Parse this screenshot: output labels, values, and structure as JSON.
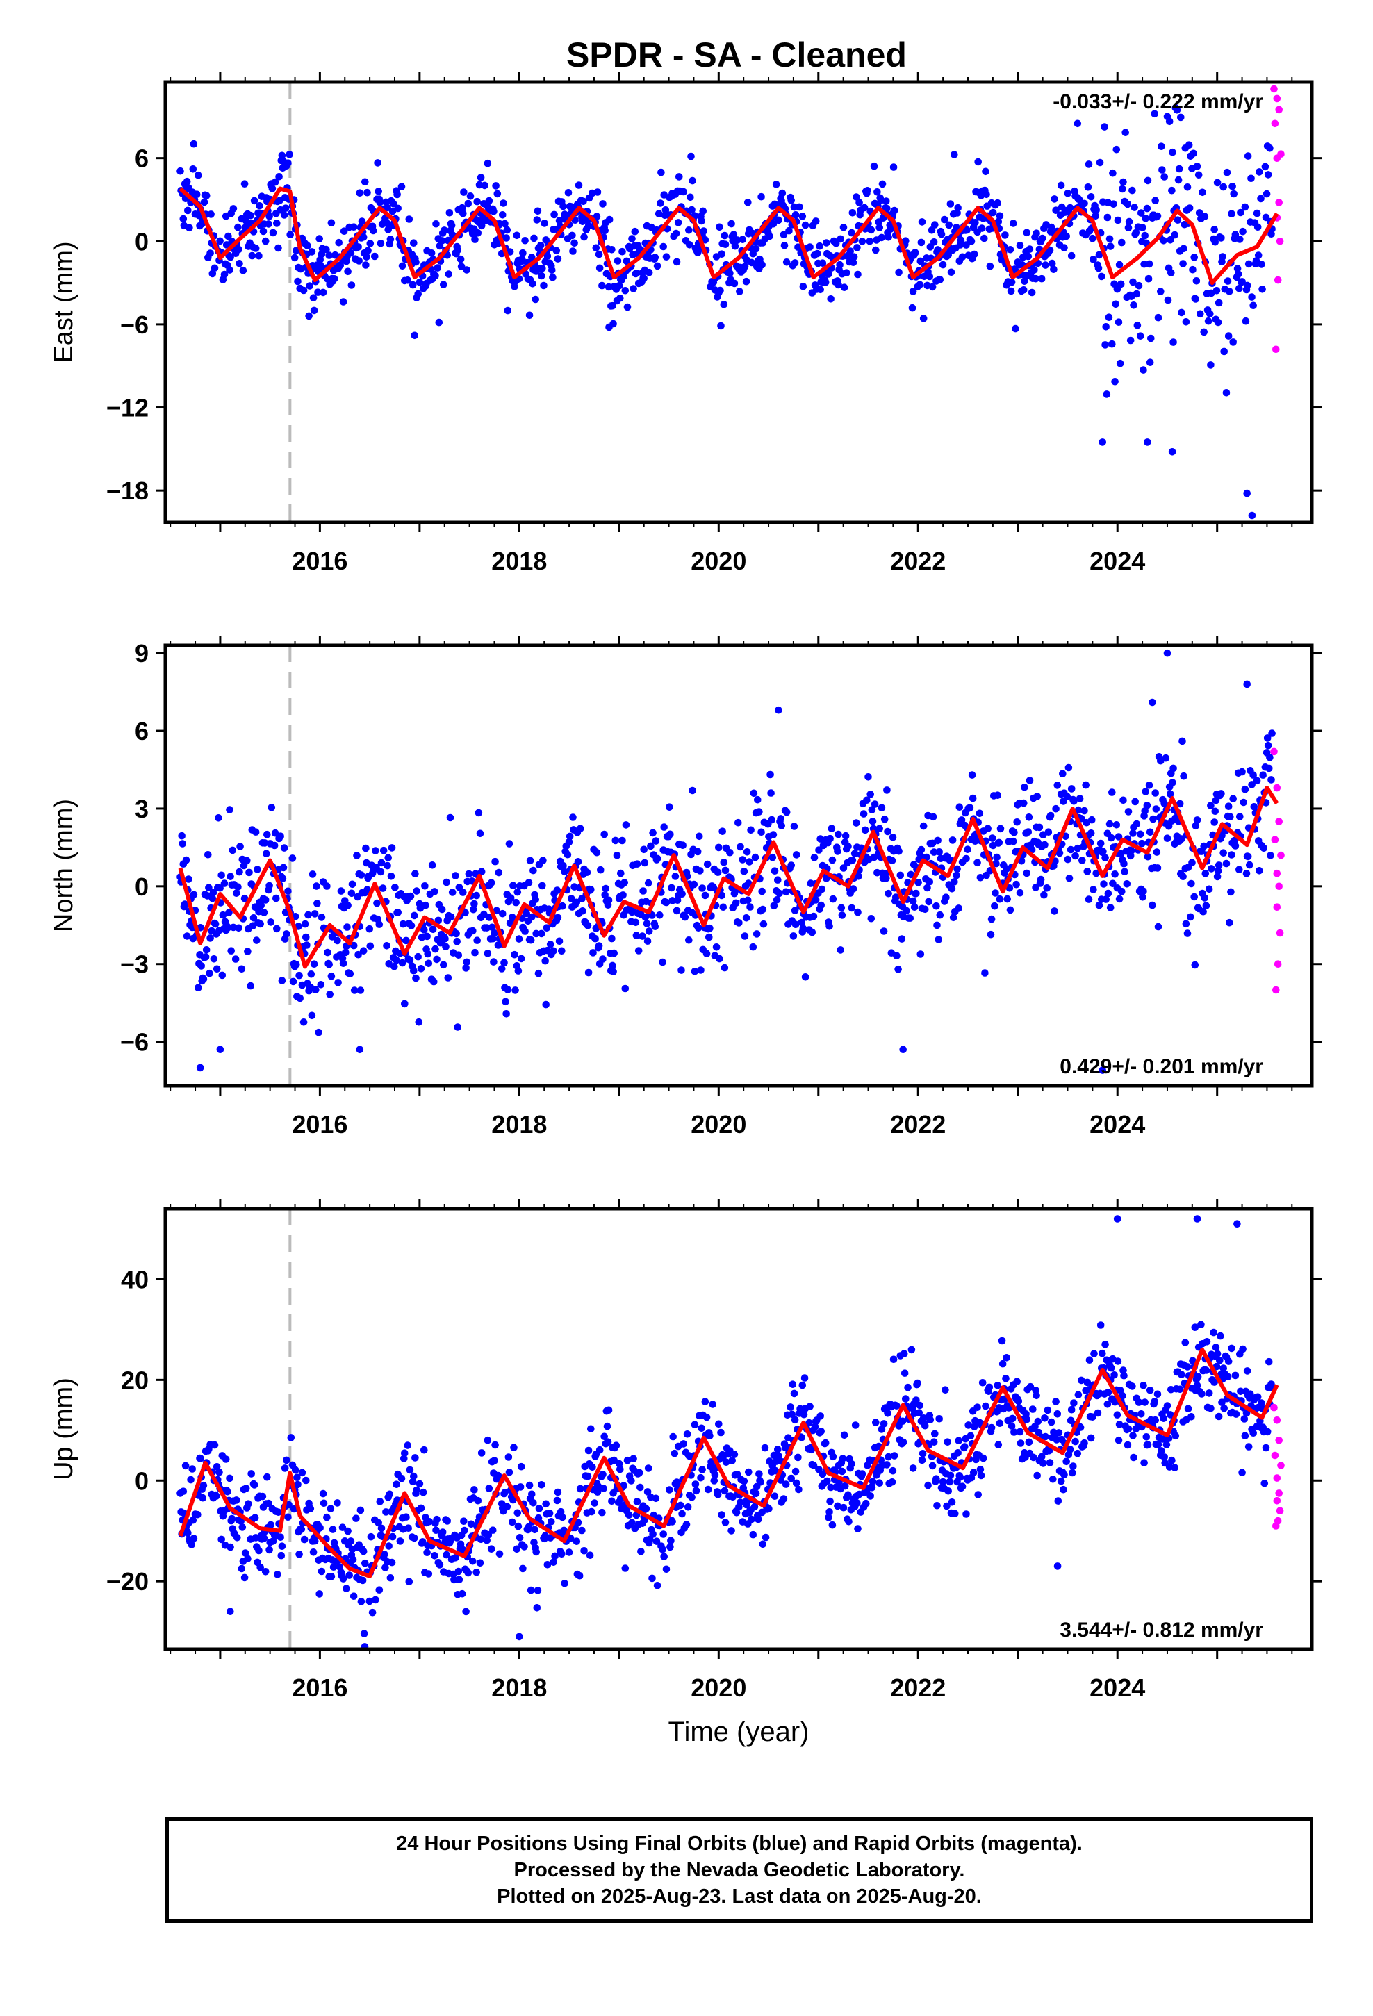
{
  "chart_data": [
    {
      "type": "scatter",
      "title": "SPDR  - SA - Cleaned",
      "ylabel": "East (mm)",
      "xlabel": "",
      "xlim": [
        2014.45,
        2025.95
      ],
      "ylim": [
        -20.3,
        11.5
      ],
      "x_ticks": [
        2016,
        2018,
        2020,
        2022,
        2024
      ],
      "y_ticks": [
        6,
        0,
        -6,
        -12,
        -18
      ],
      "y_tick_labels": [
        "6",
        "0",
        "−6",
        "−12",
        "−18"
      ],
      "rate_label": "-0.033+/- 0.222 mm/yr",
      "rate_position": "top-right",
      "grid": false,
      "equipment_change": 2015.7,
      "colors": {
        "final": "#0000ff",
        "rapid": "#ff00ff",
        "model": "#ff0000",
        "marker": "#bbbbbb"
      },
      "model": {
        "x": [
          2014.6,
          2014.8,
          2015.0,
          2015.2,
          2015.4,
          2015.6,
          2015.7,
          2015.8,
          2015.95,
          2016.2,
          2016.4,
          2016.6,
          2016.75,
          2016.95,
          2017.2,
          2017.4,
          2017.6,
          2017.75,
          2017.95,
          2018.2,
          2018.4,
          2018.6,
          2018.75,
          2018.95,
          2019.2,
          2019.4,
          2019.6,
          2019.75,
          2019.95,
          2020.2,
          2020.4,
          2020.6,
          2020.75,
          2020.95,
          2021.2,
          2021.4,
          2021.6,
          2021.75,
          2021.95,
          2022.2,
          2022.4,
          2022.6,
          2022.75,
          2022.95,
          2023.2,
          2023.4,
          2023.6,
          2023.75,
          2023.95,
          2024.2,
          2024.4,
          2024.6,
          2024.75,
          2024.95,
          2025.2,
          2025.4,
          2025.6
        ],
        "y": [
          3.8,
          2.5,
          -1.2,
          0.2,
          1.5,
          3.8,
          3.6,
          -0.5,
          -2.8,
          -1.2,
          0.6,
          2.4,
          1.5,
          -2.6,
          -1.2,
          0.6,
          2.4,
          1.5,
          -2.6,
          -1.2,
          0.6,
          2.4,
          1.5,
          -2.6,
          -1.2,
          0.6,
          2.4,
          1.5,
          -2.6,
          -1.2,
          0.6,
          2.4,
          1.5,
          -2.6,
          -1.2,
          0.6,
          2.4,
          1.5,
          -2.6,
          -1.2,
          0.6,
          2.4,
          1.5,
          -2.6,
          -1.2,
          0.6,
          2.4,
          1.5,
          -2.6,
          -1.2,
          0.2,
          2.2,
          1.2,
          -3.0,
          -1.0,
          -0.4,
          2.0
        ]
      },
      "points": {
        "start": 2014.6,
        "end": 2025.55,
        "step": 0.0075,
        "noise": 1.4,
        "spread_extra": [
          [
            2023.8,
            2025.55,
            4.0
          ]
        ],
        "outliers": [
          [
            2023.6,
            8.5
          ],
          [
            2024.5,
            9.0
          ],
          [
            2023.85,
            -14.5
          ],
          [
            2025.35,
            -19.8
          ],
          [
            2025.3,
            -18.2
          ],
          [
            2024.3,
            -14.5
          ],
          [
            2016.95,
            -6.8
          ],
          [
            2018.9,
            -6.2
          ],
          [
            2024.55,
            -15.2
          ]
        ]
      },
      "rapid": {
        "x": [
          2025.57,
          2025.6,
          2025.62,
          2025.58,
          2025.64,
          2025.6,
          2025.62,
          2025.6,
          2025.63,
          2025.61,
          2025.59
        ],
        "y": [
          11.0,
          10.3,
          9.5,
          8.5,
          6.3,
          6.0,
          2.8,
          1.7,
          0.0,
          -2.8,
          -7.8
        ]
      }
    },
    {
      "type": "scatter",
      "ylabel": "North (mm)",
      "xlabel": "",
      "xlim": [
        2014.45,
        2025.95
      ],
      "ylim": [
        -7.7,
        9.3
      ],
      "x_ticks": [
        2016,
        2018,
        2020,
        2022,
        2024
      ],
      "y_ticks": [
        9,
        6,
        3,
        0,
        -3,
        -6
      ],
      "y_tick_labels": [
        "9",
        "6",
        "3",
        "0",
        "−3",
        "−6"
      ],
      "rate_label": "0.429+/- 0.201 mm/yr",
      "rate_position": "bottom-right",
      "grid": false,
      "equipment_change": 2015.7,
      "colors": {
        "final": "#0000ff",
        "rapid": "#ff00ff",
        "model": "#ff0000",
        "marker": "#bbbbbb"
      },
      "model": {
        "x": [
          2014.6,
          2014.8,
          2015.0,
          2015.2,
          2015.5,
          2015.7,
          2015.85,
          2016.1,
          2016.3,
          2016.55,
          2016.85,
          2017.05,
          2017.3,
          2017.6,
          2017.85,
          2018.05,
          2018.3,
          2018.55,
          2018.85,
          2019.05,
          2019.3,
          2019.55,
          2019.85,
          2020.05,
          2020.3,
          2020.55,
          2020.85,
          2021.05,
          2021.3,
          2021.55,
          2021.85,
          2022.05,
          2022.3,
          2022.55,
          2022.85,
          2023.05,
          2023.3,
          2023.55,
          2023.85,
          2024.05,
          2024.3,
          2024.55,
          2024.85,
          2025.05,
          2025.3,
          2025.5,
          2025.6
        ],
        "y": [
          0.7,
          -2.2,
          -0.3,
          -1.2,
          1.0,
          -1.0,
          -3.1,
          -1.5,
          -2.2,
          0.1,
          -2.6,
          -1.2,
          -1.8,
          0.4,
          -2.3,
          -0.7,
          -1.4,
          0.8,
          -1.9,
          -0.6,
          -1.0,
          1.2,
          -1.5,
          0.3,
          -0.3,
          1.7,
          -1.0,
          0.6,
          0.0,
          2.1,
          -0.6,
          1.0,
          0.4,
          2.6,
          -0.2,
          1.5,
          0.7,
          3.0,
          0.4,
          1.8,
          1.3,
          3.4,
          0.7,
          2.4,
          1.6,
          3.8,
          3.2
        ]
      },
      "points": {
        "start": 2014.6,
        "end": 2025.55,
        "step": 0.0075,
        "noise": 1.3,
        "spread_extra": [
          [
            2020.9,
            2024.0,
            1.2
          ]
        ],
        "outliers": [
          [
            2024.5,
            9.0
          ],
          [
            2025.3,
            7.8
          ],
          [
            2020.6,
            6.8
          ],
          [
            2024.35,
            7.1
          ],
          [
            2014.8,
            -7.0
          ],
          [
            2015.0,
            -6.3
          ],
          [
            2016.4,
            -6.3
          ],
          [
            2021.85,
            -6.3
          ],
          [
            2023.85,
            -7.1
          ]
        ]
      },
      "rapid": {
        "x": [
          2025.57,
          2025.6,
          2025.62,
          2025.58,
          2025.64,
          2025.6,
          2025.62,
          2025.6,
          2025.63,
          2025.61,
          2025.59
        ],
        "y": [
          5.2,
          3.8,
          2.5,
          1.8,
          1.2,
          0.5,
          0.0,
          -0.8,
          -1.8,
          -3.0,
          -4.0
        ]
      }
    },
    {
      "type": "scatter",
      "ylabel": "Up (mm)",
      "xlabel": "Time (year)",
      "xlim": [
        2014.45,
        2025.95
      ],
      "ylim": [
        -33.5,
        54.0
      ],
      "x_ticks": [
        2016,
        2018,
        2020,
        2022,
        2024
      ],
      "y_ticks": [
        40,
        20,
        0,
        -20
      ],
      "y_tick_labels": [
        "40",
        "20",
        "0",
        "−20"
      ],
      "rate_label": "3.544+/- 0.812 mm/yr",
      "rate_position": "bottom-right",
      "grid": false,
      "equipment_change": 2015.7,
      "colors": {
        "final": "#0000ff",
        "rapid": "#ff00ff",
        "model": "#ff0000",
        "marker": "#bbbbbb"
      },
      "model": {
        "x": [
          2014.6,
          2014.85,
          2015.1,
          2015.4,
          2015.6,
          2015.7,
          2015.8,
          2016.1,
          2016.3,
          2016.5,
          2016.85,
          2017.1,
          2017.45,
          2017.85,
          2018.1,
          2018.45,
          2018.85,
          2019.1,
          2019.45,
          2019.85,
          2020.1,
          2020.45,
          2020.85,
          2021.1,
          2021.45,
          2021.85,
          2022.1,
          2022.45,
          2022.85,
          2023.1,
          2023.45,
          2023.85,
          2024.1,
          2024.5,
          2024.85,
          2025.1,
          2025.45,
          2025.6
        ],
        "y": [
          -11.0,
          3.5,
          -5.5,
          -9.5,
          -10.0,
          1.5,
          -7.0,
          -13.5,
          -17.5,
          -19.0,
          -2.5,
          -12.0,
          -15.0,
          1.0,
          -7.5,
          -12.0,
          4.5,
          -5.0,
          -9.0,
          8.5,
          -1.0,
          -5.0,
          11.5,
          1.5,
          -1.5,
          15.0,
          6.0,
          2.5,
          18.5,
          9.5,
          5.5,
          22.0,
          13.0,
          9.0,
          26.0,
          17.0,
          12.5,
          19.0
        ]
      },
      "points": {
        "start": 2014.6,
        "end": 2025.55,
        "step": 0.0075,
        "noise": 5.0,
        "spread_extra": [
          [
            2023.7,
            2025.55,
            4.5
          ]
        ],
        "outliers": [
          [
            2024.0,
            52.0
          ],
          [
            2024.8,
            52.0
          ],
          [
            2025.2,
            51.0
          ],
          [
            2016.45,
            -33.0
          ],
          [
            2018.0,
            -31.0
          ],
          [
            2015.1,
            -26.0
          ],
          [
            2023.4,
            -17.0
          ]
        ]
      },
      "rapid": {
        "x": [
          2025.57,
          2025.6,
          2025.62,
          2025.58,
          2025.64,
          2025.6,
          2025.62,
          2025.6,
          2025.63,
          2025.61,
          2025.59
        ],
        "y": [
          14.5,
          12.0,
          8.0,
          5.0,
          3.0,
          0.5,
          -2.5,
          -4.0,
          -6.0,
          -8.0,
          -9.0
        ]
      }
    }
  ],
  "footer": {
    "line1": "24 Hour Positions Using Final Orbits (blue) and Rapid Orbits (magenta).",
    "line2": "Processed by the Nevada Geodetic Laboratory.",
    "line3": "Plotted on 2025-Aug-23. Last data on 2025-Aug-20."
  }
}
